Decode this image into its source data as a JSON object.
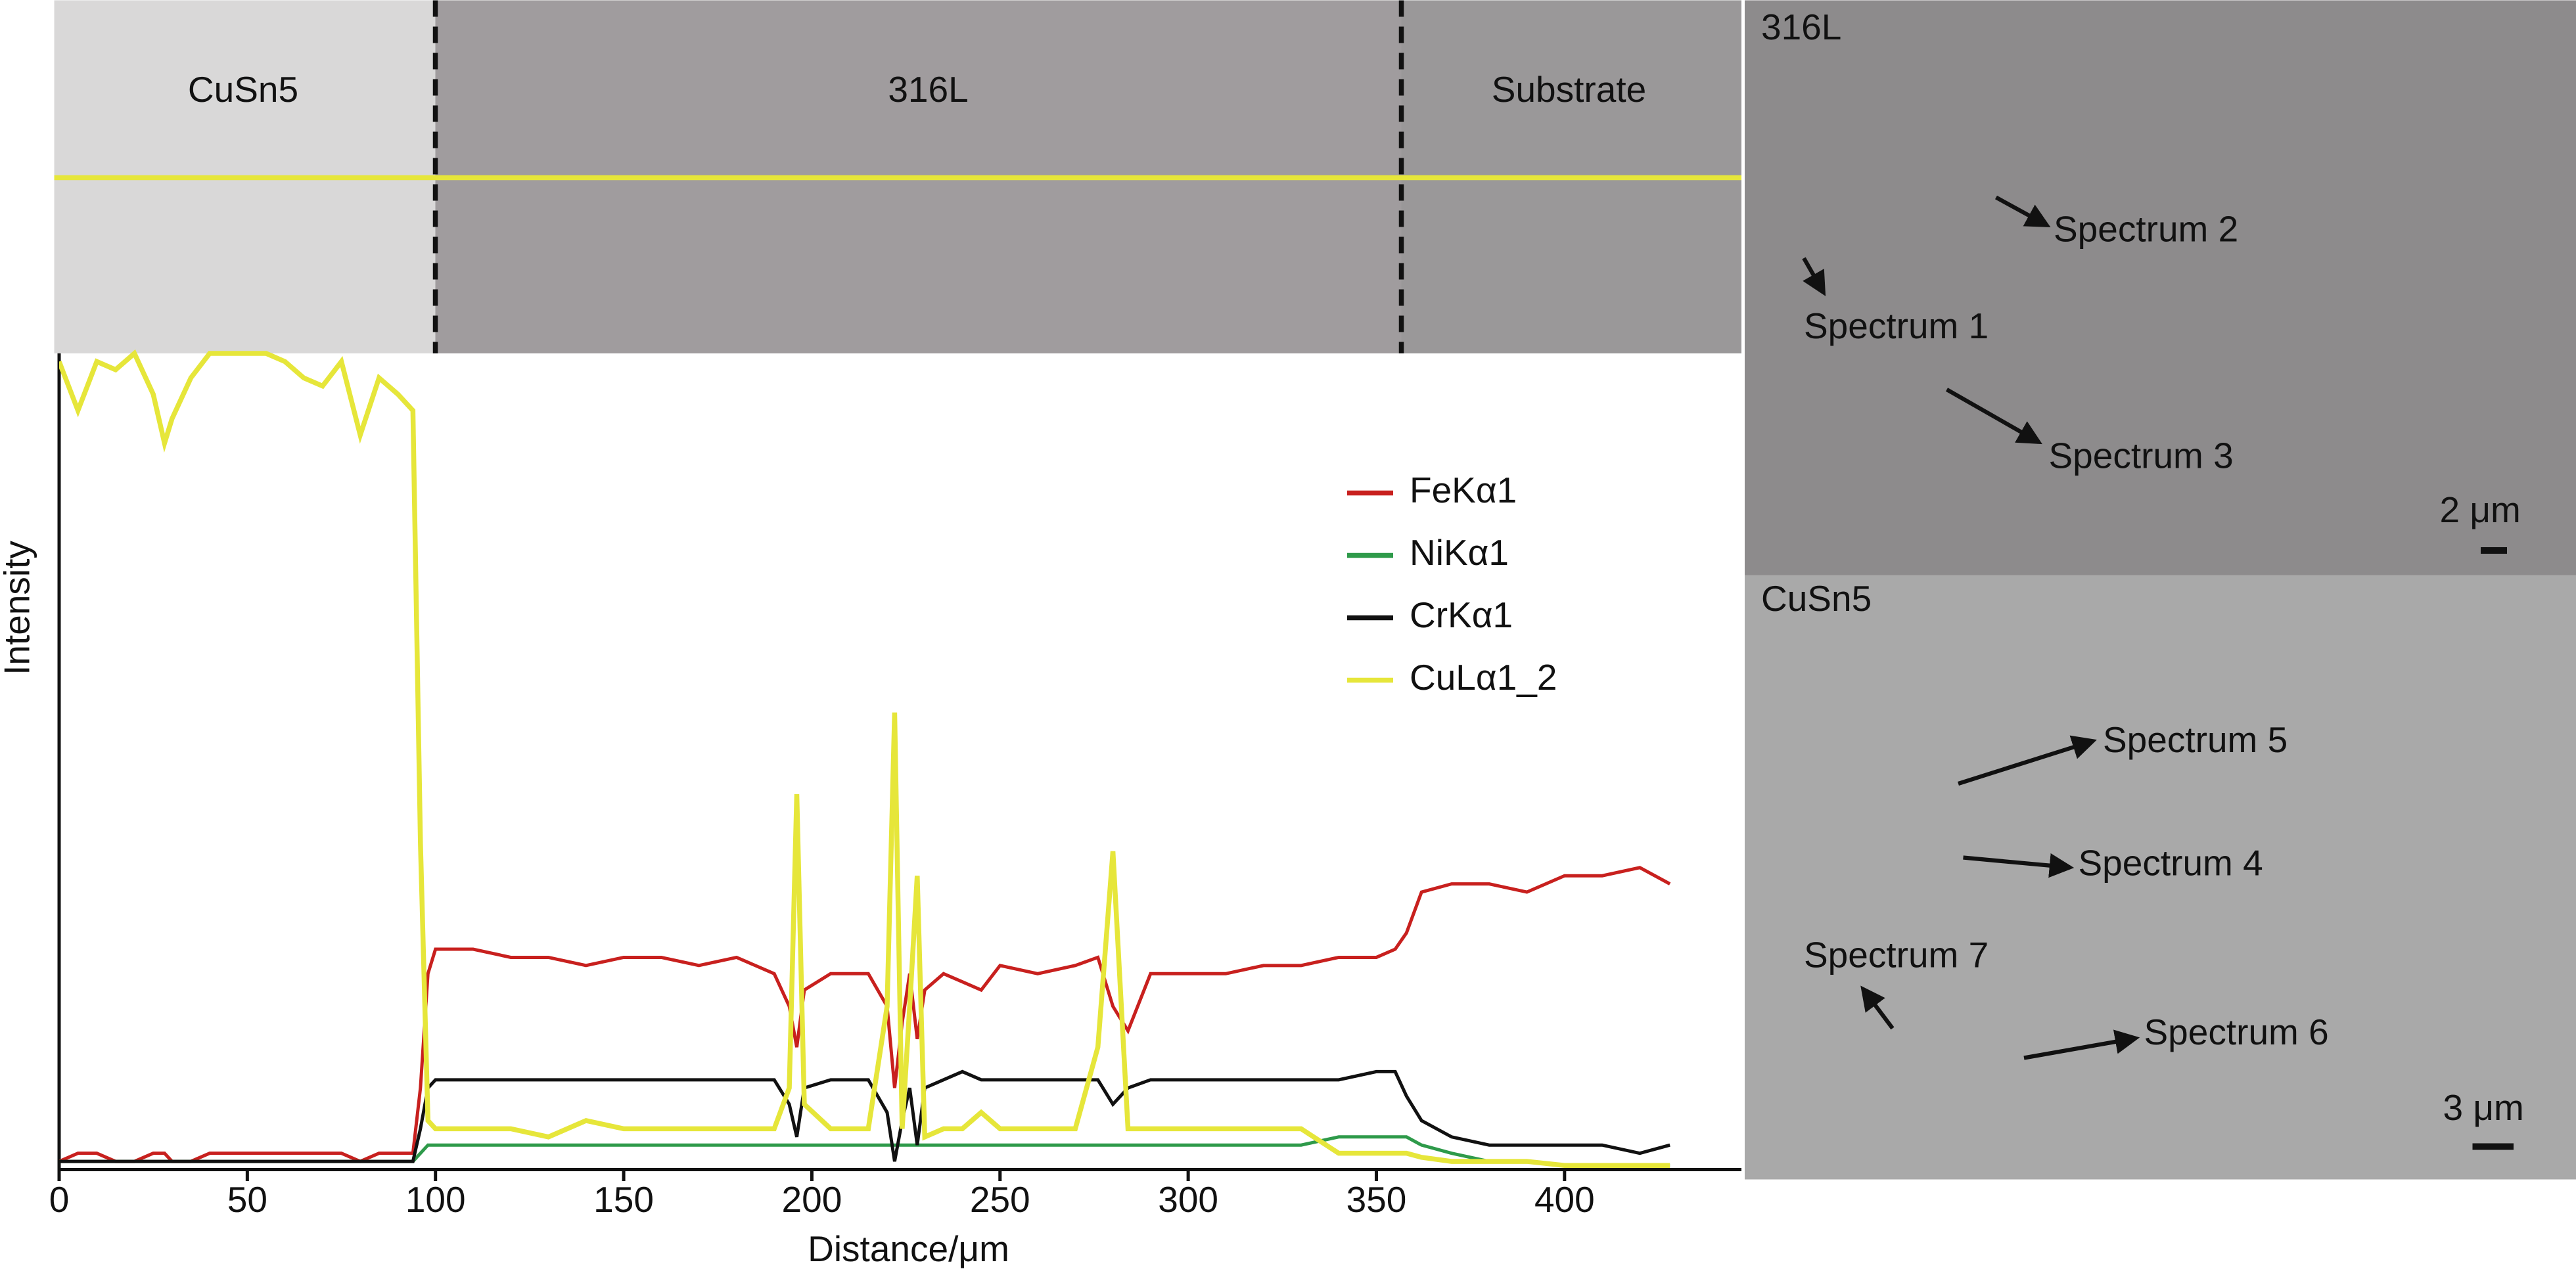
{
  "chart_data": {
    "type": "line",
    "xlabel": "Distance/μm",
    "ylabel": "Intensity",
    "xlim": [
      0,
      447
    ],
    "xticks": [
      0,
      50,
      100,
      150,
      200,
      250,
      300,
      350,
      400
    ],
    "ylim": [
      0,
      100
    ],
    "x": [
      0,
      5,
      10,
      15,
      20,
      25,
      28,
      30,
      35,
      40,
      45,
      50,
      55,
      60,
      65,
      70,
      75,
      80,
      85,
      90,
      94,
      96,
      98,
      100,
      110,
      120,
      130,
      140,
      150,
      160,
      170,
      180,
      190,
      194,
      196,
      198,
      205,
      215,
      220,
      222,
      224,
      226,
      228,
      230,
      235,
      240,
      245,
      250,
      260,
      270,
      276,
      280,
      284,
      290,
      300,
      310,
      320,
      330,
      340,
      350,
      355,
      358,
      362,
      370,
      380,
      390,
      400,
      410,
      420,
      428
    ],
    "series": [
      {
        "name": "FeKα1",
        "color": "#c8201e",
        "values": [
          1,
          2,
          2,
          1,
          1,
          2,
          2,
          1,
          1,
          2,
          2,
          2,
          2,
          2,
          2,
          2,
          2,
          1,
          2,
          2,
          2,
          10,
          24,
          27,
          27,
          26,
          26,
          25,
          26,
          26,
          25,
          26,
          24,
          20,
          15,
          22,
          24,
          24,
          20,
          10,
          18,
          24,
          16,
          22,
          24,
          23,
          22,
          25,
          24,
          25,
          26,
          20,
          17,
          24,
          24,
          24,
          25,
          25,
          26,
          26,
          27,
          29,
          34,
          35,
          35,
          34,
          36,
          36,
          37,
          35
        ]
      },
      {
        "name": "NiKα1",
        "color": "#2e9a4a",
        "values": [
          1,
          1,
          1,
          1,
          1,
          1,
          1,
          1,
          1,
          1,
          1,
          1,
          1,
          1,
          1,
          1,
          1,
          1,
          1,
          1,
          1,
          2,
          3,
          3,
          3,
          3,
          3,
          3,
          3,
          3,
          3,
          3,
          3,
          3,
          3,
          3,
          3,
          3,
          3,
          3,
          3,
          3,
          3,
          3,
          3,
          3,
          3,
          3,
          3,
          3,
          3,
          3,
          3,
          3,
          3,
          3,
          3,
          3,
          4,
          4,
          4,
          4,
          3,
          2,
          1,
          1,
          0.5,
          0.5,
          0.5,
          0.5
        ]
      },
      {
        "name": "CrKα1",
        "color": "#111111",
        "values": [
          1,
          1,
          1,
          1,
          1,
          1,
          1,
          1,
          1,
          1,
          1,
          1,
          1,
          1,
          1,
          1,
          1,
          1,
          1,
          1,
          1,
          5,
          10,
          11,
          11,
          11,
          11,
          11,
          11,
          11,
          11,
          11,
          11,
          8,
          4,
          10,
          11,
          11,
          7,
          1,
          6,
          10,
          3,
          10,
          11,
          12,
          11,
          11,
          11,
          11,
          11,
          8,
          10,
          11,
          11,
          11,
          11,
          11,
          11,
          12,
          12,
          9,
          6,
          4,
          3,
          3,
          3,
          3,
          2,
          3
        ]
      },
      {
        "name": "CuLα1_2",
        "color": "#e6e63a",
        "values": [
          99,
          93,
          99,
          98,
          100,
          95,
          89,
          92,
          97,
          100,
          100,
          100,
          100,
          99,
          97,
          96,
          99,
          90,
          97,
          95,
          93,
          40,
          6,
          5,
          5,
          5,
          4,
          6,
          5,
          5,
          5,
          5,
          5,
          10,
          46,
          8,
          5,
          5,
          20,
          56,
          5,
          20,
          36,
          4,
          5,
          5,
          7,
          5,
          5,
          5,
          15,
          39,
          5,
          5,
          5,
          5,
          5,
          5,
          2,
          2,
          2,
          2,
          1.5,
          1,
          1,
          1,
          0.5,
          0.5,
          0.5,
          0.5
        ]
      }
    ]
  },
  "micrographs": {
    "strip": {
      "labels": [
        "CuSn5",
        "316L",
        "Substrate"
      ]
    },
    "panels": [
      {
        "label": "316L",
        "scale_bar": "2 μm",
        "spectra": [
          "Spectrum 2",
          "Spectrum 1",
          "Spectrum 3"
        ]
      },
      {
        "label": "CuSn5",
        "scale_bar": "3 μm",
        "spectra": [
          "Spectrum 5",
          "Spectrum 4",
          "Spectrum 7",
          "Spectrum 6"
        ]
      }
    ]
  }
}
